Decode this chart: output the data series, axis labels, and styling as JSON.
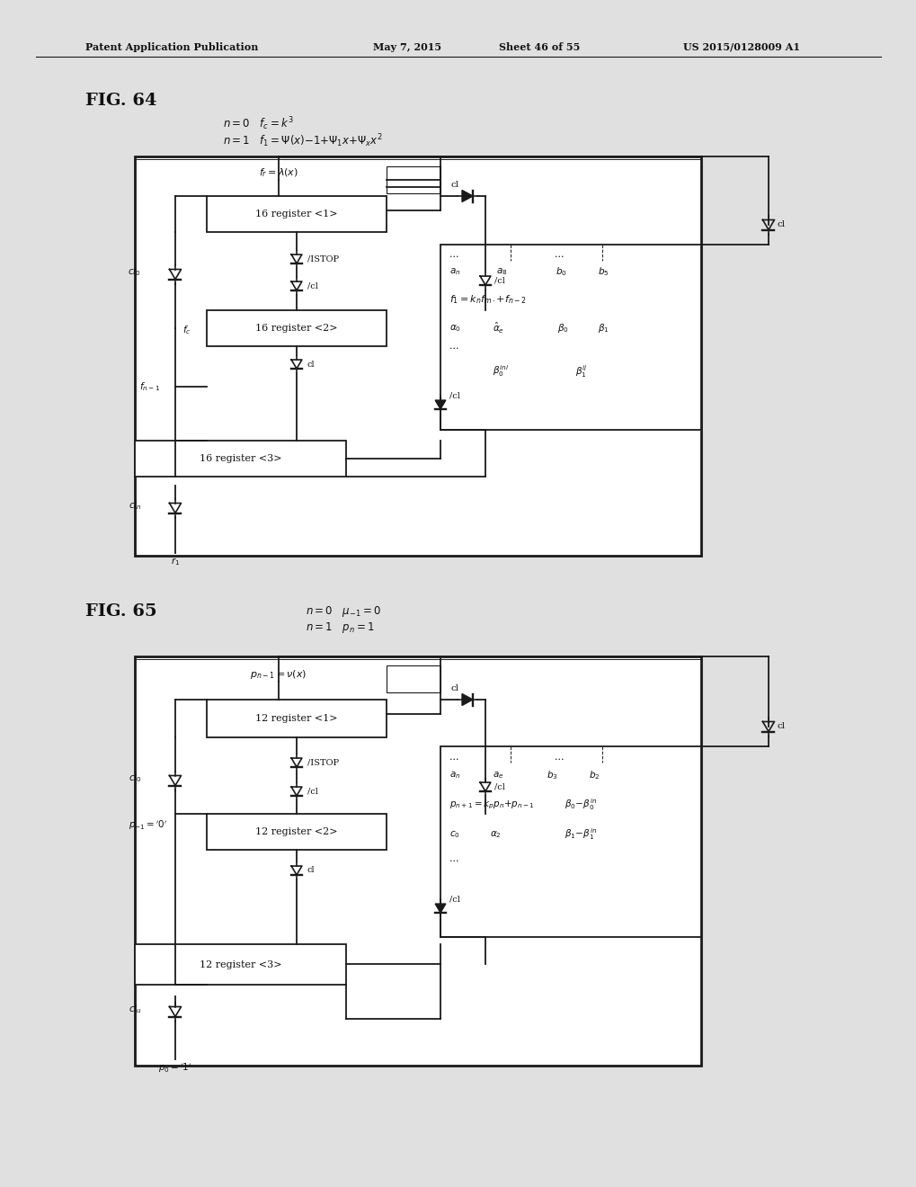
{
  "bg_color": "#e8e8e8",
  "page_bg": "#d8d8d8",
  "line_color": "#1a1a1a",
  "header_left": "Patent Application Publication",
  "header_mid1": "May 7, 2015",
  "header_mid2": "Sheet 46 of 55",
  "header_right": "US 2015/0128009 A1",
  "fig64_label": "FIG. 64",
  "fig65_label": "FIG. 65"
}
